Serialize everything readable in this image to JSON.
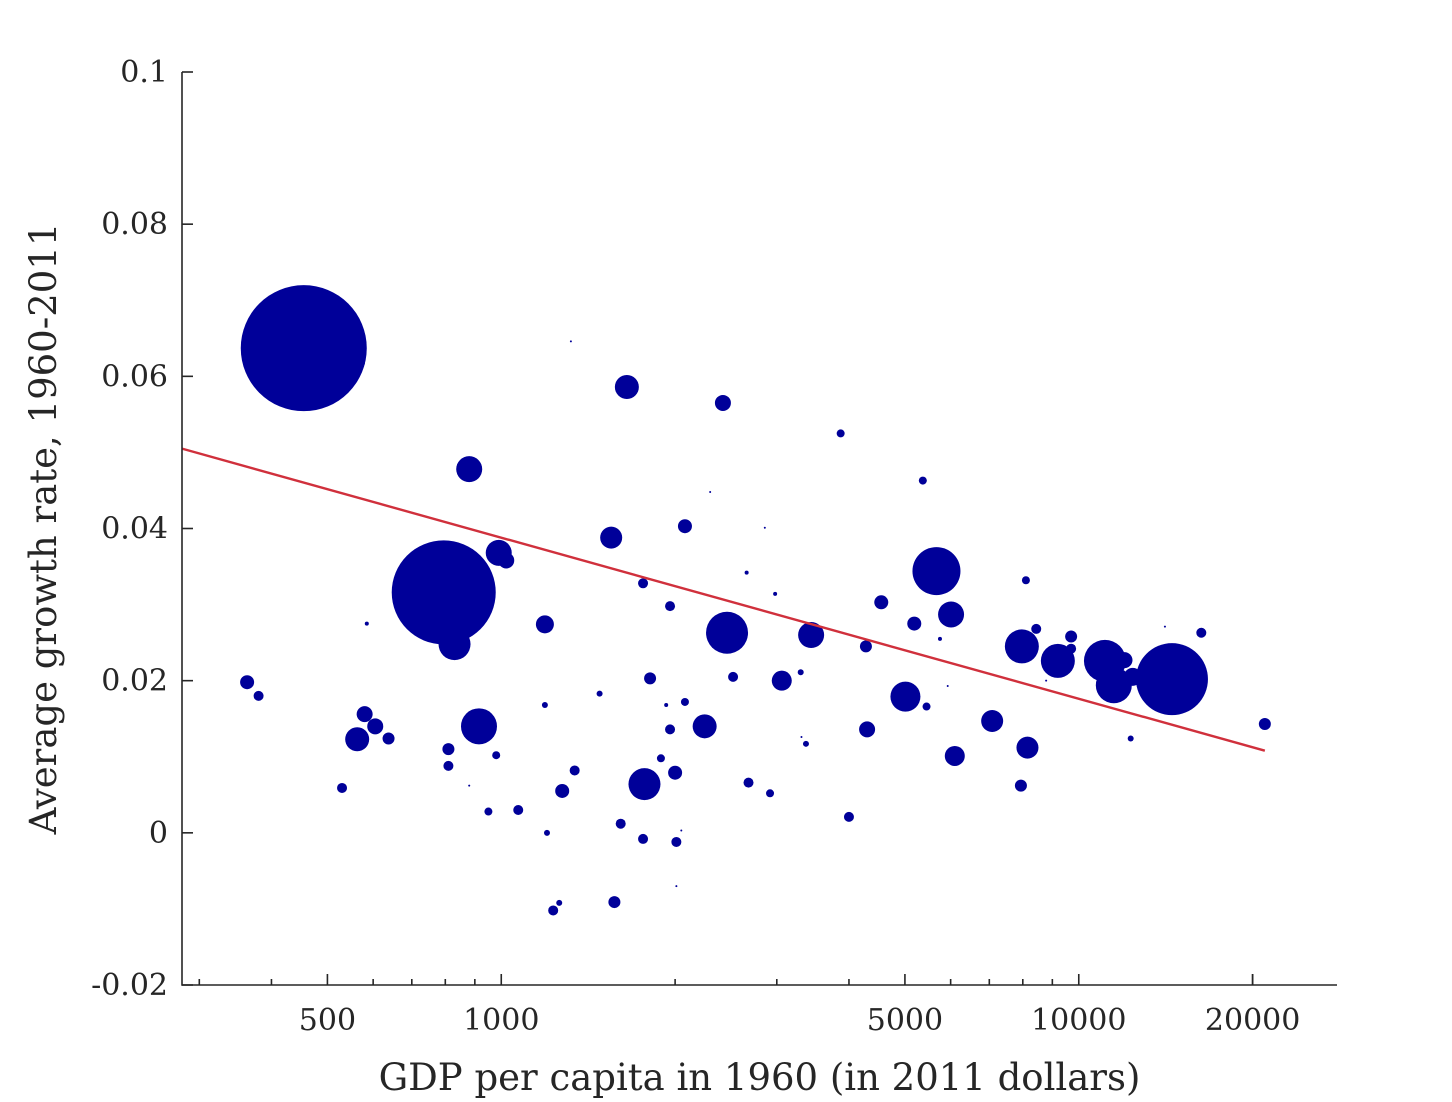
{
  "chart_data": {
    "type": "scatter",
    "title": "",
    "xlabel": "GDP per capita in 1960 (in 2011 dollars)",
    "ylabel": "Average growth rate, 1960-2011",
    "xscale": "log",
    "xlim": [
      280,
      28000
    ],
    "ylim": [
      -0.02,
      0.1
    ],
    "xticks": [
      500,
      1000,
      5000,
      10000,
      20000
    ],
    "xtick_labels": [
      "500",
      "1000",
      "5000",
      "10000",
      "20000"
    ],
    "yticks": [
      -0.02,
      0,
      0.02,
      0.04,
      0.06,
      0.08,
      0.1
    ],
    "ytick_labels": [
      "-0.02",
      "0",
      "0.02",
      "0.04",
      "0.06",
      "0.08",
      "0.1"
    ],
    "grid": false,
    "bubble_color": "#000099",
    "line_color": "#d0303c",
    "bubble_size_note": "marker area proportional to population",
    "fit_line": {
      "x": [
        280,
        21000
      ],
      "y": [
        0.0505,
        0.0108
      ]
    },
    "points": [
      [
        455,
        0.0637,
        63
      ],
      [
        795,
        0.0316,
        52
      ],
      [
        363,
        0.0198,
        7
      ],
      [
        380,
        0.018,
        5
      ],
      [
        530,
        0.0059,
        5
      ],
      [
        576,
        0.0617,
        2
      ],
      [
        580,
        0.0156,
        8
      ],
      [
        585,
        0.0275,
        2
      ],
      [
        563,
        0.0123,
        12
      ],
      [
        605,
        0.014,
        8
      ],
      [
        638,
        0.0124,
        6
      ],
      [
        810,
        0.011,
        6
      ],
      [
        830,
        0.0248,
        16
      ],
      [
        810,
        0.0088,
        5
      ],
      [
        880,
        0.0478,
        13
      ],
      [
        880,
        0.0062,
        1
      ],
      [
        915,
        0.014,
        18
      ],
      [
        950,
        0.0028,
        4
      ],
      [
        990,
        0.0368,
        13
      ],
      [
        1020,
        0.0358,
        8
      ],
      [
        980,
        0.0102,
        4
      ],
      [
        1070,
        0.003,
        5
      ],
      [
        1190,
        0.0274,
        9
      ],
      [
        1190,
        0.0168,
        3
      ],
      [
        1200,
        0.0,
        3
      ],
      [
        1230,
        -0.0102,
        5
      ],
      [
        1260,
        -0.0092,
        3
      ],
      [
        1275,
        0.0055,
        7
      ],
      [
        1320,
        0.0646,
        1
      ],
      [
        1340,
        0.0082,
        5
      ],
      [
        1480,
        0.0183,
        3
      ],
      [
        1550,
        0.0388,
        11
      ],
      [
        1570,
        -0.0091,
        6
      ],
      [
        1610,
        0.0012,
        5
      ],
      [
        1650,
        0.0586,
        12
      ],
      [
        1760,
        0.0328,
        5
      ],
      [
        1760,
        -0.0008,
        5
      ],
      [
        1810,
        0.0203,
        6
      ],
      [
        1770,
        0.0064,
        16
      ],
      [
        1890,
        0.0098,
        4
      ],
      [
        1930,
        0.0168,
        2
      ],
      [
        1960,
        0.0136,
        5
      ],
      [
        1960,
        0.0298,
        5
      ],
      [
        2000,
        0.0079,
        7
      ],
      [
        2010,
        -0.0012,
        5
      ],
      [
        2010,
        -0.007,
        1
      ],
      [
        2050,
        0.0003,
        1
      ],
      [
        2080,
        0.0403,
        7
      ],
      [
        2080,
        0.0172,
        4
      ],
      [
        2250,
        0.014,
        12
      ],
      [
        2300,
        0.0448,
        1
      ],
      [
        2420,
        0.0565,
        8
      ],
      [
        2520,
        0.0205,
        5
      ],
      [
        2460,
        0.0263,
        21
      ],
      [
        2660,
        0.0342,
        2
      ],
      [
        2680,
        0.0066,
        5
      ],
      [
        2860,
        0.0401,
        1
      ],
      [
        2920,
        0.0052,
        4
      ],
      [
        2980,
        0.0314,
        2
      ],
      [
        3060,
        0.02,
        10
      ],
      [
        3300,
        0.0211,
        3
      ],
      [
        3310,
        0.0126,
        1
      ],
      [
        3370,
        0.0117,
        3
      ],
      [
        3440,
        0.026,
        13
      ],
      [
        3870,
        0.0525,
        4
      ],
      [
        4000,
        0.0021,
        5
      ],
      [
        4280,
        0.0245,
        6
      ],
      [
        4300,
        0.0136,
        8
      ],
      [
        4550,
        0.0303,
        7
      ],
      [
        5010,
        0.0179,
        15
      ],
      [
        5190,
        0.0275,
        7
      ],
      [
        5370,
        0.0463,
        4
      ],
      [
        5450,
        0.0166,
        4
      ],
      [
        5670,
        0.0344,
        24
      ],
      [
        5750,
        0.0255,
        2
      ],
      [
        5930,
        0.0193,
        1
      ],
      [
        6010,
        0.0287,
        13
      ],
      [
        6100,
        0.0101,
        10
      ],
      [
        7080,
        0.0147,
        11
      ],
      [
        7690,
        0.0248,
        3
      ],
      [
        7970,
        0.0245,
        17
      ],
      [
        7940,
        0.0062,
        6
      ],
      [
        8100,
        0.0332,
        4
      ],
      [
        8150,
        0.0112,
        11
      ],
      [
        8440,
        0.0268,
        5
      ],
      [
        8780,
        0.02,
        1
      ],
      [
        8870,
        0.024,
        2
      ],
      [
        9200,
        0.0226,
        17
      ],
      [
        9700,
        0.0258,
        6
      ],
      [
        9700,
        0.0242,
        5
      ],
      [
        11100,
        0.0226,
        21
      ],
      [
        11500,
        0.0194,
        18
      ],
      [
        12000,
        0.0227,
        8
      ],
      [
        12400,
        0.0205,
        9
      ],
      [
        12300,
        0.0124,
        3
      ],
      [
        14100,
        0.0271,
        1
      ],
      [
        14500,
        0.0202,
        36
      ],
      [
        16300,
        0.0263,
        5
      ],
      [
        21000,
        0.0143,
        6
      ]
    ]
  }
}
